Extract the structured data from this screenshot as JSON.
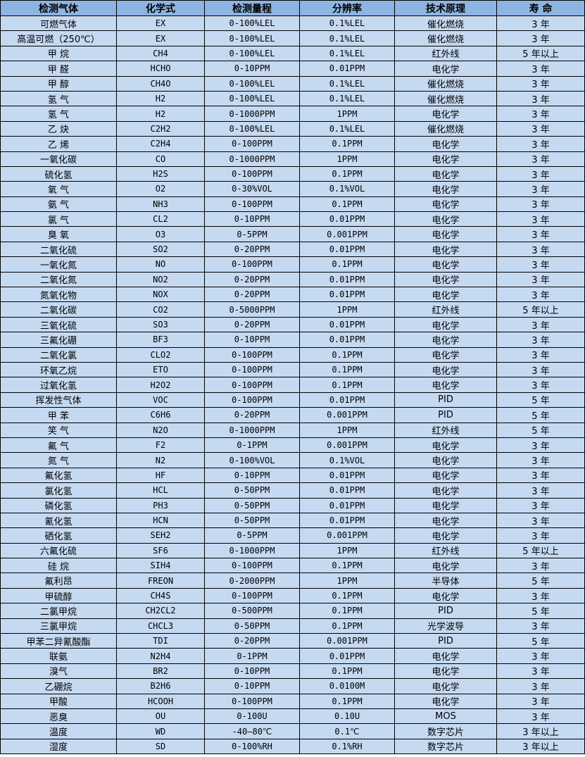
{
  "headers": [
    "检测气体",
    "化学式",
    "检测量程",
    "分辨率",
    "技术原理",
    "寿 命"
  ],
  "colors": {
    "header_bg": "#8db4e2",
    "row_bg": "#c5d9f1",
    "border": "#000000"
  },
  "rows": [
    [
      "可燃气体",
      "EX",
      "0-100%LEL",
      "0.1%LEL",
      "催化燃烧",
      "3 年"
    ],
    [
      "高温可燃（250℃）",
      "EX",
      "0-100%LEL",
      "0.1%LEL",
      "催化燃烧",
      "3 年"
    ],
    [
      "甲 烷",
      "CH4",
      "0-100%LEL",
      "0.1%LEL",
      "红外线",
      "5 年以上"
    ],
    [
      "甲 醛",
      "HCHO",
      "0-10PPM",
      "0.01PPM",
      "电化学",
      "3 年"
    ],
    [
      "甲 醇",
      "CH4O",
      "0-100%LEL",
      "0.1%LEL",
      "催化燃烧",
      "3 年"
    ],
    [
      "氢 气",
      "H2",
      "0-100%LEL",
      "0.1%LEL",
      "催化燃烧",
      "3 年"
    ],
    [
      "氢 气",
      "H2",
      "0-1000PPM",
      "1PPM",
      "电化学",
      "3 年"
    ],
    [
      "乙 炔",
      "C2H2",
      "0-100%LEL",
      "0.1%LEL",
      "催化燃烧",
      "3 年"
    ],
    [
      "乙 烯",
      "C2H4",
      "0-100PPM",
      "0.1PPM",
      "电化学",
      "3 年"
    ],
    [
      "一氧化碳",
      "CO",
      "0-1000PPM",
      "1PPM",
      "电化学",
      "3 年"
    ],
    [
      "硫化氢",
      "H2S",
      "0-100PPM",
      "0.1PPM",
      "电化学",
      "3 年"
    ],
    [
      "氧 气",
      "O2",
      "0-30%VOL",
      "0.1%VOL",
      "电化学",
      "3 年"
    ],
    [
      "氨 气",
      "NH3",
      "0-100PPM",
      "0.1PPM",
      "电化学",
      "3 年"
    ],
    [
      "氯 气",
      "CL2",
      "0-10PPM",
      "0.01PPM",
      "电化学",
      "3 年"
    ],
    [
      "臭 氧",
      "O3",
      "0-5PPM",
      "0.001PPM",
      "电化学",
      "3 年"
    ],
    [
      "二氧化硫",
      "SO2",
      "0-20PPM",
      "0.01PPM",
      "电化学",
      "3 年"
    ],
    [
      "一氧化氮",
      "NO",
      "0-100PPM",
      "0.1PPM",
      "电化学",
      "3 年"
    ],
    [
      "二氧化氮",
      "NO2",
      "0-20PPM",
      "0.01PPM",
      "电化学",
      "3 年"
    ],
    [
      "氮氧化物",
      "NOX",
      "0-20PPM",
      "0.01PPM",
      "电化学",
      "3 年"
    ],
    [
      "二氧化碳",
      "CO2",
      "0-5000PPM",
      "1PPM",
      "红外线",
      "5 年以上"
    ],
    [
      "三氧化硫",
      "SO3",
      "0-20PPM",
      "0.01PPM",
      "电化学",
      "3 年"
    ],
    [
      "三氟化硼",
      "BF3",
      "0-10PPM",
      "0.01PPM",
      "电化学",
      "3 年"
    ],
    [
      "二氧化氯",
      "CLO2",
      "0-100PPM",
      "0.1PPM",
      "电化学",
      "3 年"
    ],
    [
      "环氧乙烷",
      "ETO",
      "0-100PPM",
      "0.1PPM",
      "电化学",
      "3 年"
    ],
    [
      "过氧化氢",
      "H2O2",
      "0-100PPM",
      "0.1PPM",
      "电化学",
      "3 年"
    ],
    [
      "挥发性气体",
      "VOC",
      "0-100PPM",
      "0.01PPM",
      "PID",
      "5 年"
    ],
    [
      "甲 苯",
      "C6H6",
      "0-20PPM",
      "0.001PPM",
      "PID",
      "5 年"
    ],
    [
      "笑 气",
      "N2O",
      "0-1000PPM",
      "1PPM",
      "红外线",
      "5 年"
    ],
    [
      "氟 气",
      "F2",
      "0-1PPM",
      "0.001PPM",
      "电化学",
      "3 年"
    ],
    [
      "氮 气",
      "N2",
      "0-100%VOL",
      "0.1%VOL",
      "电化学",
      "3 年"
    ],
    [
      "氟化氢",
      "HF",
      "0-10PPM",
      "0.01PPM",
      "电化学",
      "3 年"
    ],
    [
      "氯化氢",
      "HCL",
      "0-50PPM",
      "0.01PPM",
      "电化学",
      "3 年"
    ],
    [
      "磷化氢",
      "PH3",
      "0-50PPM",
      "0.01PPM",
      "电化学",
      "3 年"
    ],
    [
      "氰化氢",
      "HCN",
      "0-50PPM",
      "0.01PPM",
      "电化学",
      "3 年"
    ],
    [
      "硒化氢",
      "SEH2",
      "0-5PPM",
      "0.001PPM",
      "电化学",
      "3 年"
    ],
    [
      "六氟化硫",
      "SF6",
      "0-1000PPM",
      "1PPM",
      "红外线",
      "5 年以上"
    ],
    [
      "硅 烷",
      "SIH4",
      "0-100PPM",
      "0.1PPM",
      "电化学",
      "3 年"
    ],
    [
      "氟利昂",
      "FREON",
      "0-2000PPM",
      "1PPM",
      "半导体",
      "5 年"
    ],
    [
      "甲硫醇",
      "CH4S",
      "0-100PPM",
      "0.1PPM",
      "电化学",
      "3 年"
    ],
    [
      "二氯甲烷",
      "CH2CL2",
      "0-500PPM",
      "0.1PPM",
      "PID",
      "5 年"
    ],
    [
      "三氯甲烷",
      "CHCL3",
      "0-50PPM",
      "0.1PPM",
      "光学波导",
      "3 年"
    ],
    [
      "甲苯二异氰酸酯",
      "TDI",
      "0-20PPM",
      "0.001PPM",
      "PID",
      "5 年"
    ],
    [
      "联氨",
      "N2H4",
      "0-1PPM",
      "0.01PPM",
      "电化学",
      "3 年"
    ],
    [
      "溴气",
      "BR2",
      "0-10PPM",
      "0.1PPM",
      "电化学",
      "3 年"
    ],
    [
      "乙硼烷",
      "B2H6",
      "0-10PPM",
      "0.0100M",
      "电化学",
      "3 年"
    ],
    [
      "甲酸",
      "HCOOH",
      "0-100PPM",
      "0.1PPM",
      "电化学",
      "3 年"
    ],
    [
      "恶臭",
      "OU",
      "0-100U",
      "0.10U",
      "MOS",
      "3 年"
    ],
    [
      "温度",
      "WD",
      "-40—80℃",
      "0.1℃",
      "数字芯片",
      "3 年以上"
    ],
    [
      "湿度",
      "SD",
      "0-100%RH",
      "0.1%RH",
      "数字芯片",
      "3 年以上"
    ]
  ]
}
